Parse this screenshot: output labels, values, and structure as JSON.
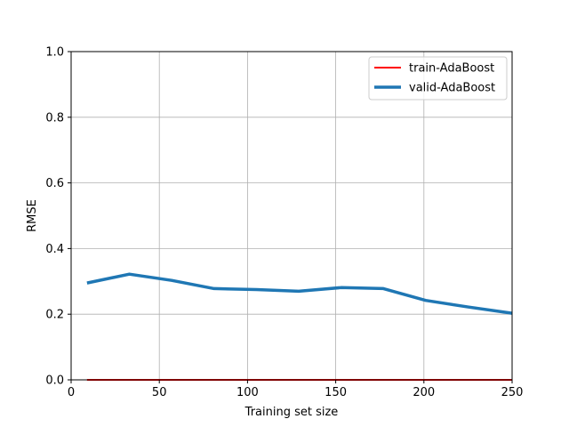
{
  "chart_data": {
    "type": "line",
    "title": "",
    "xlabel": "Training set size",
    "ylabel": "RMSE",
    "xlim": [
      0,
      250
    ],
    "ylim": [
      0,
      1.0
    ],
    "xticks": [
      0,
      50,
      100,
      150,
      200,
      250
    ],
    "xtick_labels": [
      "0",
      "50",
      "100",
      "150",
      "200",
      "250"
    ],
    "yticks": [
      0,
      0.2,
      0.4,
      0.6,
      0.8,
      1.0
    ],
    "ytick_labels": [
      "0.0",
      "0.2",
      "0.4",
      "0.6",
      "0.8",
      "1.0"
    ],
    "grid": true,
    "legend_position": "top-right",
    "series": [
      {
        "name": "train-AdaBoost",
        "color": "#ff0000",
        "x": [
          9,
          33,
          57,
          81,
          105,
          129,
          153,
          177,
          201,
          225,
          250
        ],
        "values": [
          0,
          0,
          0,
          0,
          0,
          0,
          0,
          0,
          0,
          0,
          0
        ]
      },
      {
        "name": "valid-AdaBoost",
        "color": "#1f77b4",
        "x": [
          9,
          33,
          57,
          81,
          105,
          129,
          153,
          177,
          201,
          225,
          250
        ],
        "values": [
          0.295,
          0.322,
          0.303,
          0.278,
          0.275,
          0.27,
          0.281,
          0.278,
          0.242,
          0.222,
          0.203
        ]
      }
    ]
  }
}
